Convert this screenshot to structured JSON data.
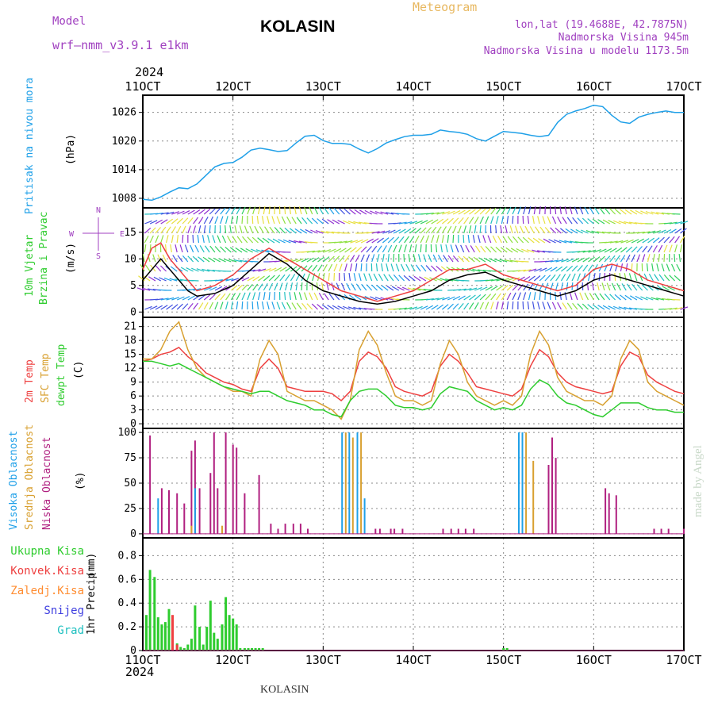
{
  "header": {
    "model_label": "Model",
    "model_name": "wrf—nmm_v3.9.1  e1km",
    "station": "KOLASIN",
    "product": "Meteogram",
    "lonlat": "lon,lat (19.4688E, 42.7875N)",
    "elevation": "Nadmorska Visina 945m",
    "model_elevation": "Nadmorska Visina u modelu 1173.5m",
    "year_top": "2024",
    "year_bottom": "2024",
    "footer": "KOLASIN",
    "credit": "made by Angel"
  },
  "colors": {
    "pressure": "#1fa0e8",
    "t2m": "#ee4040",
    "sfc": "#d8a030",
    "dewpt": "#2ecc2e",
    "high_cloud": "#1fa0e8",
    "mid_cloud": "#d8a030",
    "low_cloud": "#b02080",
    "total_precip": "#2ecc2e",
    "conv_precip": "#ee4040",
    "frz_precip": "#ff8c30",
    "snow": "#4040e0",
    "graupel": "#20c0c0",
    "grid": "#888888",
    "frame": "#000000",
    "label_purple": "#a040c0",
    "label_gold": "#e8b860"
  },
  "chart_data": [
    {
      "type": "line",
      "id": "pressure",
      "ylabel_series": "Pritisak na nivou mora",
      "ylabel_unit": "(hPa)",
      "x_ticks": [
        "11OCT",
        "12OCT",
        "13OCT",
        "14OCT",
        "15OCT",
        "16OCT",
        "17OCT"
      ],
      "xlim": [
        0,
        6
      ],
      "ylim": [
        1006,
        1029.6
      ],
      "y_ticks": [
        1008,
        1014,
        1020,
        1026
      ],
      "grid": true,
      "series": [
        {
          "color_key": "pressure",
          "x": [
            0,
            0.1,
            0.2,
            0.3,
            0.4,
            0.5,
            0.6,
            0.7,
            0.8,
            0.9,
            1.0,
            1.1,
            1.2,
            1.3,
            1.4,
            1.5,
            1.6,
            1.7,
            1.8,
            1.9,
            2.0,
            2.1,
            2.2,
            2.3,
            2.4,
            2.5,
            2.6,
            2.7,
            2.8,
            2.9,
            3.0,
            3.1,
            3.2,
            3.3,
            3.4,
            3.5,
            3.6,
            3.7,
            3.8,
            3.9,
            4.0,
            4.1,
            4.2,
            4.3,
            4.4,
            4.5,
            4.6,
            4.7,
            4.8,
            4.9,
            5.0,
            5.1,
            5.2,
            5.3,
            5.4,
            5.5,
            5.6,
            5.7,
            5.8,
            5.9,
            6.0
          ],
          "y": [
            1007.8,
            1007.6,
            1008.3,
            1009.3,
            1010.2,
            1010.0,
            1011.0,
            1012.8,
            1014.6,
            1015.3,
            1015.5,
            1016.6,
            1018.1,
            1018.5,
            1018.2,
            1017.8,
            1018.0,
            1019.6,
            1021.0,
            1021.2,
            1020.1,
            1019.5,
            1019.5,
            1019.3,
            1018.3,
            1017.5,
            1018.4,
            1019.6,
            1020.3,
            1020.9,
            1021.2,
            1021.2,
            1021.4,
            1022.3,
            1022.0,
            1021.8,
            1021.4,
            1020.5,
            1020.0,
            1021.0,
            1022.0,
            1021.8,
            1021.6,
            1021.2,
            1020.9,
            1021.2,
            1023.9,
            1025.6,
            1026.3,
            1026.8,
            1027.5,
            1027.2,
            1025.4,
            1024.0,
            1023.7,
            1025.0,
            1025.6,
            1026.0,
            1026.3,
            1026.0,
            1026.0
          ]
        }
      ]
    },
    {
      "type": "line",
      "id": "wind",
      "ylabel_series1": "10m Vjetar",
      "ylabel_series2": "Brzina i Pravac",
      "ylabel_unit": "(m/s)",
      "compass": {
        "n": "N",
        "s": "S",
        "e": "E",
        "w": "W"
      },
      "xlim": [
        0,
        6
      ],
      "ylim": [
        -1,
        19.6
      ],
      "y_ticks": [
        0,
        5,
        10,
        15
      ],
      "grid": true,
      "series": [
        {
          "color_key": "frame",
          "x": [
            0,
            0.1,
            0.2,
            0.3,
            0.4,
            0.5,
            0.6,
            0.8,
            1.0,
            1.2,
            1.4,
            1.6,
            1.8,
            2.0,
            2.2,
            2.4,
            2.6,
            2.8,
            3.0,
            3.2,
            3.4,
            3.6,
            3.8,
            4.0,
            4.2,
            4.4,
            4.6,
            4.8,
            5.0,
            5.2,
            5.4,
            5.6,
            5.8,
            6.0
          ],
          "y": [
            6,
            8,
            10,
            8,
            6,
            4,
            3,
            3.5,
            5,
            8,
            11,
            9,
            6,
            4,
            3,
            2,
            1.5,
            2,
            3,
            4,
            6,
            7,
            7.5,
            6,
            5,
            4,
            3,
            4,
            6,
            7,
            6,
            5,
            4,
            3
          ]
        },
        {
          "color_key": "t2m",
          "x": [
            0,
            0.1,
            0.2,
            0.3,
            0.4,
            0.5,
            0.6,
            0.8,
            1.0,
            1.2,
            1.4,
            1.6,
            1.8,
            2.0,
            2.2,
            2.4,
            2.6,
            2.8,
            3.0,
            3.2,
            3.4,
            3.6,
            3.8,
            4.0,
            4.2,
            4.4,
            4.6,
            4.8,
            5.0,
            5.2,
            5.4,
            5.6,
            5.8,
            6.0
          ],
          "y": [
            8,
            12,
            13,
            10,
            8,
            6,
            4,
            5,
            7,
            10,
            12,
            10,
            8,
            6,
            4,
            3,
            2,
            3,
            4,
            6,
            8,
            8,
            9,
            7,
            6,
            5,
            4,
            5,
            8,
            9,
            8,
            6,
            5,
            4
          ]
        }
      ]
    },
    {
      "type": "line",
      "id": "temperature",
      "ylabel_t2m": "2m Temp",
      "ylabel_sfc": "SFC Temp",
      "ylabel_dew": "dewpt Temp",
      "ylabel_unit": "(C)",
      "xlim": [
        0,
        6
      ],
      "ylim": [
        -1,
        23
      ],
      "y_ticks": [
        0,
        3,
        6,
        9,
        12,
        15,
        18,
        21
      ],
      "grid": true,
      "series": [
        {
          "name": "2m Temp",
          "color_key": "t2m",
          "x": [
            0,
            0.1,
            0.2,
            0.3,
            0.4,
            0.5,
            0.6,
            0.7,
            0.8,
            0.9,
            1.0,
            1.1,
            1.2,
            1.3,
            1.4,
            1.5,
            1.6,
            1.7,
            1.8,
            1.9,
            2.0,
            2.1,
            2.2,
            2.3,
            2.4,
            2.5,
            2.6,
            2.7,
            2.8,
            2.9,
            3.0,
            3.1,
            3.2,
            3.3,
            3.4,
            3.5,
            3.6,
            3.7,
            3.8,
            3.9,
            4.0,
            4.1,
            4.2,
            4.3,
            4.4,
            4.5,
            4.6,
            4.7,
            4.8,
            4.9,
            5.0,
            5.1,
            5.2,
            5.3,
            5.4,
            5.5,
            5.6,
            5.7,
            5.8,
            5.9,
            6.0
          ],
          "y": [
            13.5,
            14,
            15,
            15.5,
            16.5,
            14.5,
            13,
            11,
            10,
            9,
            8.5,
            7.5,
            7,
            12,
            14,
            12,
            8,
            7.5,
            7,
            7,
            7,
            6.5,
            5,
            7,
            13.5,
            15.5,
            14.5,
            12,
            8,
            7,
            6.5,
            6,
            7,
            12.5,
            15,
            13.5,
            11,
            8,
            7.5,
            7,
            6.5,
            6,
            7.5,
            12.5,
            16,
            14.5,
            11,
            9,
            8,
            7.5,
            7,
            6.5,
            7,
            12.5,
            15.5,
            14.5,
            10.5,
            9,
            8,
            7,
            6.5
          ]
        },
        {
          "name": "SFC Temp",
          "color_key": "sfc",
          "x": [
            0,
            0.1,
            0.2,
            0.3,
            0.4,
            0.5,
            0.6,
            0.7,
            0.8,
            0.9,
            1.0,
            1.1,
            1.2,
            1.3,
            1.4,
            1.5,
            1.6,
            1.7,
            1.8,
            1.9,
            2.0,
            2.1,
            2.2,
            2.3,
            2.4,
            2.5,
            2.6,
            2.7,
            2.8,
            2.9,
            3.0,
            3.1,
            3.2,
            3.3,
            3.4,
            3.5,
            3.6,
            3.7,
            3.8,
            3.9,
            4.0,
            4.1,
            4.2,
            4.3,
            4.4,
            4.5,
            4.6,
            4.7,
            4.8,
            4.9,
            5.0,
            5.1,
            5.2,
            5.3,
            5.4,
            5.5,
            5.6,
            5.7,
            5.8,
            5.9,
            6.0
          ],
          "y": [
            14,
            14,
            16,
            20,
            22,
            16,
            12,
            10,
            9,
            8,
            7,
            7,
            6,
            14,
            18,
            15,
            7,
            6,
            5,
            5,
            4,
            3,
            1,
            5,
            16,
            20,
            17,
            11,
            6,
            5,
            5,
            4,
            5,
            13,
            18,
            15,
            9,
            6,
            5,
            4,
            5,
            4,
            6,
            15,
            20,
            17,
            10,
            7,
            6,
            5,
            5,
            4,
            6,
            14,
            18,
            16,
            9,
            7,
            6,
            5,
            4
          ]
        },
        {
          "name": "dewpt Temp",
          "color_key": "dewpt",
          "x": [
            0,
            0.1,
            0.2,
            0.3,
            0.4,
            0.5,
            0.6,
            0.7,
            0.8,
            0.9,
            1.0,
            1.1,
            1.2,
            1.3,
            1.4,
            1.5,
            1.6,
            1.7,
            1.8,
            1.9,
            2.0,
            2.1,
            2.2,
            2.3,
            2.4,
            2.5,
            2.6,
            2.7,
            2.8,
            2.9,
            3.0,
            3.1,
            3.2,
            3.3,
            3.4,
            3.5,
            3.6,
            3.7,
            3.8,
            3.9,
            4.0,
            4.1,
            4.2,
            4.3,
            4.4,
            4.5,
            4.6,
            4.7,
            4.8,
            4.9,
            5.0,
            5.1,
            5.2,
            5.3,
            5.4,
            5.5,
            5.6,
            5.7,
            5.8,
            5.9,
            6.0
          ],
          "y": [
            13.5,
            13.5,
            13,
            12.5,
            13,
            12,
            11,
            10,
            9,
            8,
            7.5,
            7,
            6.5,
            7,
            7,
            6,
            5,
            4.5,
            4,
            3,
            3,
            2,
            1.5,
            5,
            7,
            7.5,
            7.5,
            6,
            4,
            3.5,
            3.5,
            3,
            3.5,
            6.5,
            8,
            7.5,
            7,
            5,
            4,
            3,
            3.5,
            3,
            4,
            7.5,
            9.5,
            8.5,
            6,
            4.5,
            4,
            3,
            2,
            1.5,
            3,
            4.5,
            4.5,
            4.5,
            3.5,
            3,
            3,
            2.5,
            2.5
          ]
        }
      ]
    },
    {
      "type": "bar",
      "id": "cloud",
      "ylabel_high": "Visoka Oblacnost",
      "ylabel_mid": "Srednja Oblacnost",
      "ylabel_low": "Niska Oblacnost",
      "ylabel_unit": "(%)",
      "xlim": [
        0,
        6
      ],
      "ylim": [
        -4,
        104
      ],
      "y_ticks": [
        0,
        25,
        50,
        75,
        100
      ],
      "grid": true,
      "series": [
        {
          "name": "Niska Oblacnost",
          "color_key": "low_cloud",
          "x": [
            0.08,
            0.21,
            0.29,
            0.38,
            0.46,
            0.54,
            0.58,
            0.63,
            0.75,
            0.79,
            0.83,
            0.92,
            1.0,
            1.04,
            1.13,
            1.29,
            1.42,
            1.5,
            1.58,
            1.67,
            1.75,
            1.83,
            2.58,
            2.63,
            2.75,
            2.79,
            2.88,
            3.33,
            3.42,
            3.5,
            3.58,
            3.67,
            4.5,
            4.54,
            4.58,
            5.13,
            5.17,
            5.25,
            5.67,
            5.75,
            5.83,
            6.0
          ],
          "y": [
            97,
            45,
            43,
            40,
            30,
            82,
            92,
            45,
            60,
            100,
            45,
            100,
            88,
            85,
            40,
            58,
            10,
            5,
            10,
            10,
            10,
            5,
            5,
            5,
            5,
            5,
            5,
            5,
            5,
            5,
            5,
            5,
            68,
            95,
            75,
            45,
            40,
            38,
            5,
            5,
            5,
            5
          ]
        },
        {
          "name": "Srednja Oblacnost",
          "color_key": "mid_cloud",
          "x": [
            0.54,
            0.88,
            2.25,
            2.33,
            2.42,
            4.25,
            4.33
          ],
          "y": [
            8,
            8,
            100,
            95,
            100,
            100,
            72
          ]
        },
        {
          "name": "Visoka Oblacnost",
          "color_key": "high_cloud",
          "x": [
            0.17,
            0.58,
            2.21,
            2.29,
            2.38,
            2.46,
            4.17,
            4.21
          ],
          "y": [
            35,
            45,
            100,
            100,
            100,
            35,
            100,
            100
          ]
        }
      ]
    },
    {
      "type": "bar",
      "id": "precip",
      "ylabel_series": "1hr Precip",
      "ylabel_unit": "(mm)",
      "legend": [
        "Ukupna Kisa",
        "Konvek.Kisa",
        "Zaledj.Kisa",
        "Snijeg",
        "Grad"
      ],
      "legend_colors": [
        "total_precip",
        "conv_precip",
        "frz_precip",
        "snow",
        "graupel"
      ],
      "xlim": [
        0,
        6
      ],
      "ylim": [
        0,
        0.95
      ],
      "y_ticks": [
        0,
        0.2,
        0.4,
        0.6,
        0.8
      ],
      "grid": true,
      "series": [
        {
          "name": "Ukupna Kisa",
          "color_key": "total_precip",
          "x": [
            0.04,
            0.08,
            0.13,
            0.17,
            0.21,
            0.25,
            0.29,
            0.33,
            0.38,
            0.42,
            0.46,
            0.5,
            0.54,
            0.58,
            0.63,
            0.67,
            0.71,
            0.75,
            0.79,
            0.83,
            0.88,
            0.92,
            0.96,
            1.0,
            1.04,
            1.08,
            1.13,
            1.17,
            1.21,
            1.25,
            1.29,
            1.33,
            4.0,
            4.04
          ],
          "y": [
            0.3,
            0.68,
            0.62,
            0.28,
            0.22,
            0.24,
            0.35,
            0.12,
            0.06,
            0.03,
            0.02,
            0.05,
            0.1,
            0.38,
            0.2,
            0.05,
            0.2,
            0.42,
            0.15,
            0.1,
            0.22,
            0.45,
            0.3,
            0.27,
            0.22,
            0.02,
            0.02,
            0.02,
            0.02,
            0.02,
            0.02,
            0.02,
            0.02,
            0.02
          ]
        },
        {
          "name": "Konvek.Kisa",
          "color_key": "conv_precip",
          "x": [
            0.33,
            0.38
          ],
          "y": [
            0.3,
            0.05
          ]
        }
      ]
    }
  ]
}
